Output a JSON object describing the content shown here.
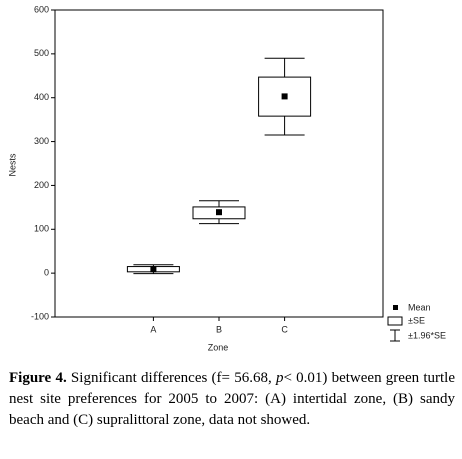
{
  "chart_data": {
    "type": "box",
    "categories": [
      "A",
      "B",
      "C"
    ],
    "x_label": "Zone",
    "y_label": "Nests",
    "ylim": [
      -100,
      600
    ],
    "yticks": [
      -100,
      0,
      100,
      200,
      300,
      400,
      500,
      600
    ],
    "mean": {
      "name": "Mean",
      "values": [
        9,
        139,
        403
      ]
    },
    "se": {
      "name": "±SE",
      "low": [
        3,
        124,
        358
      ],
      "high": [
        15,
        151,
        447
      ]
    },
    "ci": {
      "name": "±1.96*SE",
      "low": [
        -1,
        113,
        315
      ],
      "high": [
        19,
        165,
        490
      ]
    },
    "color": "#000000"
  },
  "caption": {
    "label": "Figure 4.",
    "parts": [
      " Significant differences (f= 56.68, ",
      "p",
      "< 0.01) between green turtle nest site preferences for 2005 to 2007: (A) intertidal zone, (B) sandy beach and (C) supralittoral zone, data not showed."
    ]
  }
}
